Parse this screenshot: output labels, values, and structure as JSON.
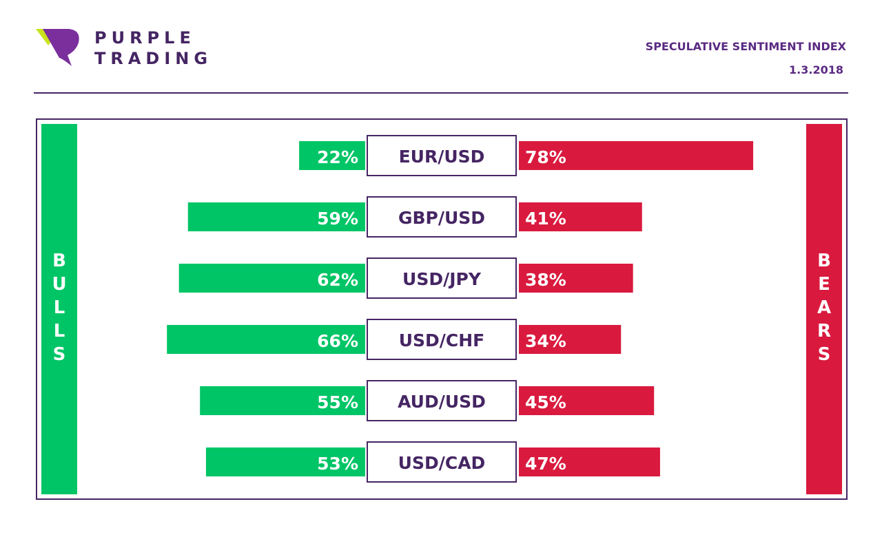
{
  "brand": {
    "line1": "PURPLE",
    "line2": "TRADING"
  },
  "header": {
    "title": "SPECULATIVE SENTIMENT INDEX",
    "date": "1.3.2018"
  },
  "labels": {
    "bulls": "BULLS",
    "bears": "BEARS"
  },
  "colors": {
    "bull": "#00c566",
    "bear": "#d91a3e",
    "purple": "#452563",
    "accent_lime": "#c8e31b",
    "accent_purple": "#7a2f9c"
  },
  "chart_data": {
    "type": "bar",
    "categories": [
      "EUR/USD",
      "GBP/USD",
      "USD/JPY",
      "USD/CHF",
      "AUD/USD",
      "USD/CAD"
    ],
    "series": [
      {
        "name": "BULLS",
        "values": [
          22,
          59,
          62,
          66,
          55,
          53
        ]
      },
      {
        "name": "BEARS",
        "values": [
          78,
          41,
          38,
          34,
          45,
          47
        ]
      }
    ],
    "value_labels": {
      "bulls": [
        "22%",
        "59%",
        "62%",
        "66%",
        "55%",
        "53%"
      ],
      "bears": [
        "78%",
        "41%",
        "38%",
        "34%",
        "45%",
        "47%"
      ]
    },
    "unit": "%",
    "xlim": [
      0,
      100
    ]
  }
}
